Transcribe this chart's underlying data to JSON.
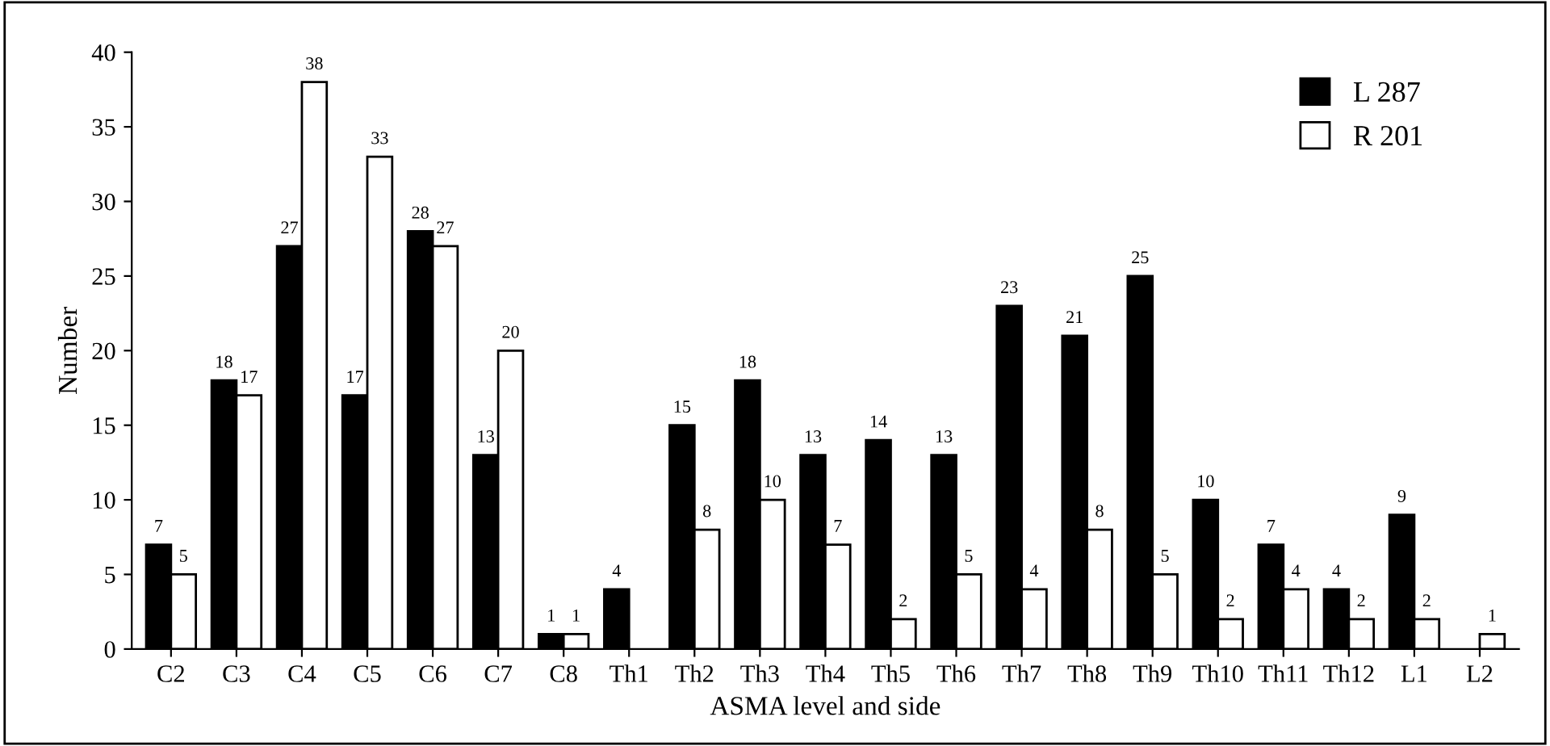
{
  "chart_data": {
    "type": "bar",
    "xlabel": "ASMA level and side",
    "ylabel": "Number",
    "categories": [
      "C2",
      "C3",
      "C4",
      "C5",
      "C6",
      "C7",
      "C8",
      "Th1",
      "Th2",
      "Th3",
      "Th4",
      "Th5",
      "Th6",
      "Th7",
      "Th8",
      "Th9",
      "Th10",
      "Th11",
      "Th12",
      "L1",
      "L2"
    ],
    "series": [
      {
        "name": "L 287",
        "color": "#000000",
        "values": [
          7,
          18,
          27,
          17,
          28,
          13,
          1,
          4,
          15,
          18,
          13,
          14,
          13,
          23,
          21,
          25,
          10,
          7,
          4,
          9,
          null
        ]
      },
      {
        "name": "R 201",
        "color": "#ffffff",
        "values": [
          5,
          17,
          38,
          33,
          27,
          20,
          1,
          null,
          8,
          10,
          7,
          2,
          5,
          4,
          8,
          5,
          2,
          4,
          2,
          2,
          1
        ]
      }
    ],
    "ylim": [
      0,
      40
    ],
    "yticks": [
      0,
      5,
      10,
      15,
      20,
      25,
      30,
      35,
      40
    ],
    "data_labels": true,
    "legend": "top right",
    "grid": false
  }
}
